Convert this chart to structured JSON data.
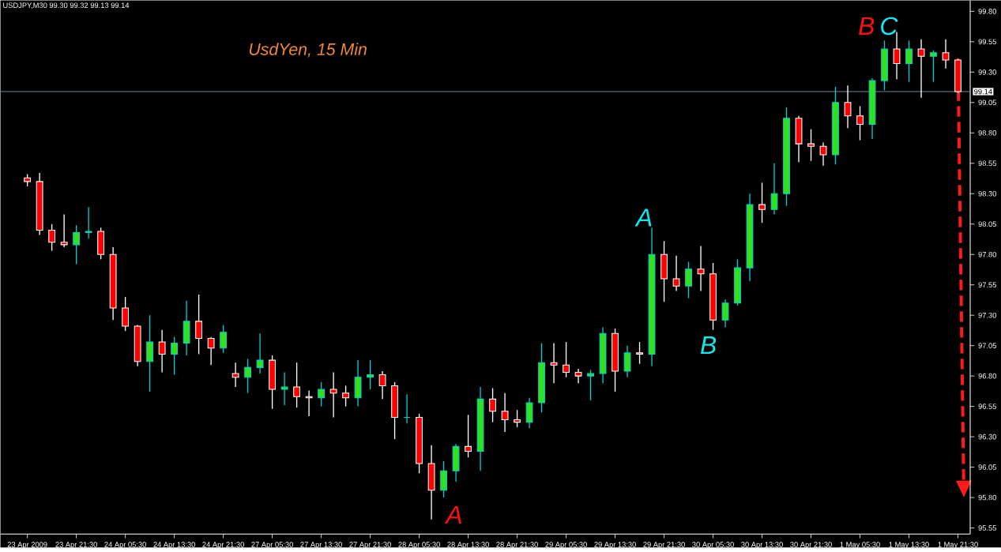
{
  "chart_data": {
    "type": "candlestick",
    "title": "UsdYen, 15 Min",
    "subtitle": "USDJPY,M30  99.30 99.32 99.13 99.14",
    "categories": [
      "23 Apr 2009",
      null,
      null,
      null,
      "23 Apr 21:30",
      null,
      null,
      null,
      "24 Apr 05:30",
      null,
      null,
      null,
      "24 Apr 13:30",
      null,
      null,
      null,
      "24 Apr 21:30",
      null,
      null,
      null,
      "27 Apr 05:30",
      null,
      null,
      null,
      "27 Apr 13:30",
      null,
      null,
      null,
      "27 Apr 21:30",
      null,
      null,
      null,
      "28 Apr 05:30",
      null,
      null,
      null,
      "28 Apr 13:30",
      null,
      null,
      null,
      "28 Apr 21:30",
      null,
      null,
      null,
      "29 Apr 05:30",
      null,
      null,
      null,
      "29 Apr 13:30",
      null,
      null,
      null,
      "29 Apr 21:30",
      null,
      null,
      null,
      "30 Apr 05:30",
      null,
      null,
      null,
      "30 Apr 13:30",
      null,
      null,
      null,
      "30 Apr 21:30",
      null,
      null,
      null,
      "1 May 05:30",
      null,
      null,
      null,
      "1 May 13:30",
      null,
      null,
      null,
      "1 May 21:30"
    ],
    "ohlc": [
      [
        98.43,
        98.46,
        98.36,
        98.4
      ],
      [
        98.4,
        98.47,
        97.96,
        98.0
      ],
      [
        98.0,
        98.05,
        97.83,
        97.9
      ],
      [
        97.9,
        98.13,
        97.86,
        97.88
      ],
      [
        97.88,
        98.04,
        97.72,
        97.98
      ],
      [
        97.98,
        98.19,
        97.93,
        97.99
      ],
      [
        97.99,
        98.02,
        97.76,
        97.8
      ],
      [
        97.8,
        97.86,
        97.26,
        97.36
      ],
      [
        97.36,
        97.45,
        97.17,
        97.21
      ],
      [
        97.21,
        97.22,
        96.88,
        96.92
      ],
      [
        96.92,
        97.3,
        96.67,
        97.08
      ],
      [
        97.08,
        97.18,
        96.83,
        96.98
      ],
      [
        96.98,
        97.12,
        96.81,
        97.07
      ],
      [
        97.07,
        97.42,
        96.97,
        97.25
      ],
      [
        97.25,
        97.47,
        96.98,
        97.11
      ],
      [
        97.11,
        97.12,
        96.89,
        97.03
      ],
      [
        97.03,
        97.22,
        96.99,
        97.16
      ],
      [
        96.82,
        96.91,
        96.71,
        96.79
      ],
      [
        96.79,
        96.94,
        96.66,
        96.87
      ],
      [
        96.87,
        97.15,
        96.82,
        96.93
      ],
      [
        96.93,
        96.97,
        96.53,
        96.69
      ],
      [
        96.69,
        96.83,
        96.56,
        96.71
      ],
      [
        96.71,
        96.91,
        96.54,
        96.63
      ],
      [
        96.63,
        96.68,
        96.47,
        96.62
      ],
      [
        96.62,
        96.75,
        96.55,
        96.69
      ],
      [
        96.69,
        96.83,
        96.46,
        96.66
      ],
      [
        96.66,
        96.72,
        96.55,
        96.62
      ],
      [
        96.62,
        96.93,
        96.55,
        96.79
      ],
      [
        96.79,
        96.93,
        96.69,
        96.81
      ],
      [
        96.81,
        96.84,
        96.61,
        96.72
      ],
      [
        96.72,
        96.75,
        96.28,
        96.46
      ],
      [
        96.46,
        96.65,
        96.41,
        96.46
      ],
      [
        96.46,
        96.49,
        96.0,
        96.08
      ],
      [
        96.08,
        96.23,
        95.62,
        95.86
      ],
      [
        95.86,
        96.1,
        95.8,
        96.02
      ],
      [
        96.02,
        96.24,
        95.93,
        96.22
      ],
      [
        96.22,
        96.48,
        96.13,
        96.18
      ],
      [
        96.18,
        96.71,
        96.02,
        96.61
      ],
      [
        96.61,
        96.7,
        96.42,
        96.51
      ],
      [
        96.51,
        96.66,
        96.34,
        96.44
      ],
      [
        96.44,
        96.52,
        96.38,
        96.42
      ],
      [
        96.42,
        96.62,
        96.37,
        96.58
      ],
      [
        96.58,
        97.07,
        96.5,
        96.91
      ],
      [
        96.91,
        97.07,
        96.74,
        96.89
      ],
      [
        96.89,
        97.08,
        96.79,
        96.83
      ],
      [
        96.83,
        96.86,
        96.74,
        96.8
      ],
      [
        96.8,
        96.85,
        96.6,
        96.82
      ],
      [
        96.82,
        97.2,
        96.74,
        97.15
      ],
      [
        97.15,
        97.19,
        96.67,
        96.84
      ],
      [
        96.84,
        97.05,
        96.79,
        96.99
      ],
      [
        96.99,
        97.08,
        96.9,
        96.98
      ],
      [
        96.98,
        98.02,
        96.88,
        97.8
      ],
      [
        97.8,
        97.91,
        97.41,
        97.6
      ],
      [
        97.6,
        97.79,
        97.5,
        97.54
      ],
      [
        97.54,
        97.74,
        97.44,
        97.68
      ],
      [
        97.68,
        97.87,
        97.5,
        97.64
      ],
      [
        97.64,
        97.73,
        97.18,
        97.26
      ],
      [
        97.26,
        97.43,
        97.2,
        97.4
      ],
      [
        97.4,
        97.76,
        97.38,
        97.69
      ],
      [
        97.69,
        98.3,
        97.58,
        98.21
      ],
      [
        98.21,
        98.39,
        98.06,
        98.17
      ],
      [
        98.17,
        98.55,
        98.13,
        98.3
      ],
      [
        98.3,
        99.01,
        98.2,
        98.92
      ],
      [
        98.92,
        98.94,
        98.56,
        98.71
      ],
      [
        98.71,
        98.83,
        98.57,
        98.69
      ],
      [
        98.69,
        98.72,
        98.53,
        98.62
      ],
      [
        98.62,
        99.18,
        98.54,
        99.05
      ],
      [
        99.05,
        99.19,
        98.84,
        98.94
      ],
      [
        98.94,
        99.02,
        98.74,
        98.87
      ],
      [
        98.87,
        99.25,
        98.75,
        99.23
      ],
      [
        99.23,
        99.56,
        99.15,
        99.49
      ],
      [
        99.49,
        99.63,
        99.24,
        99.37
      ],
      [
        99.37,
        99.56,
        99.22,
        99.49
      ],
      [
        99.49,
        99.57,
        99.09,
        99.43
      ],
      [
        99.43,
        99.48,
        99.22,
        99.46
      ],
      [
        99.46,
        99.57,
        99.33,
        99.4
      ],
      [
        99.4,
        99.41,
        99.13,
        99.14
      ]
    ],
    "ylim": [
      95.5,
      99.89
    ],
    "yticks": [
      {
        "value": 95.55,
        "label": "95.55"
      },
      {
        "value": 95.8,
        "label": "95.80"
      },
      {
        "value": 96.05,
        "label": "96.05"
      },
      {
        "value": 96.3,
        "label": "96.30"
      },
      {
        "value": 96.55,
        "label": "96.55"
      },
      {
        "value": 96.8,
        "label": "96.80"
      },
      {
        "value": 97.05,
        "label": "97.05"
      },
      {
        "value": 97.3,
        "label": "97.30"
      },
      {
        "value": 97.55,
        "label": "97.55"
      },
      {
        "value": 97.8,
        "label": "97.80"
      },
      {
        "value": 98.05,
        "label": "98.05"
      },
      {
        "value": 98.3,
        "label": "98.30"
      },
      {
        "value": 98.55,
        "label": "98.55"
      },
      {
        "value": 98.8,
        "label": "98.80"
      },
      {
        "value": 99.05,
        "label": "99.05"
      },
      {
        "value": 99.3,
        "label": "99.30"
      },
      {
        "value": 99.55,
        "label": "99.55"
      },
      {
        "value": 99.8,
        "label": "99.80"
      }
    ],
    "ref_lines": [
      {
        "axis": "y",
        "value": 99.14,
        "label": "99.14",
        "color": "#8fa4bd"
      }
    ],
    "annotations": [
      "A",
      "A",
      "B",
      "B",
      "C"
    ]
  }
}
